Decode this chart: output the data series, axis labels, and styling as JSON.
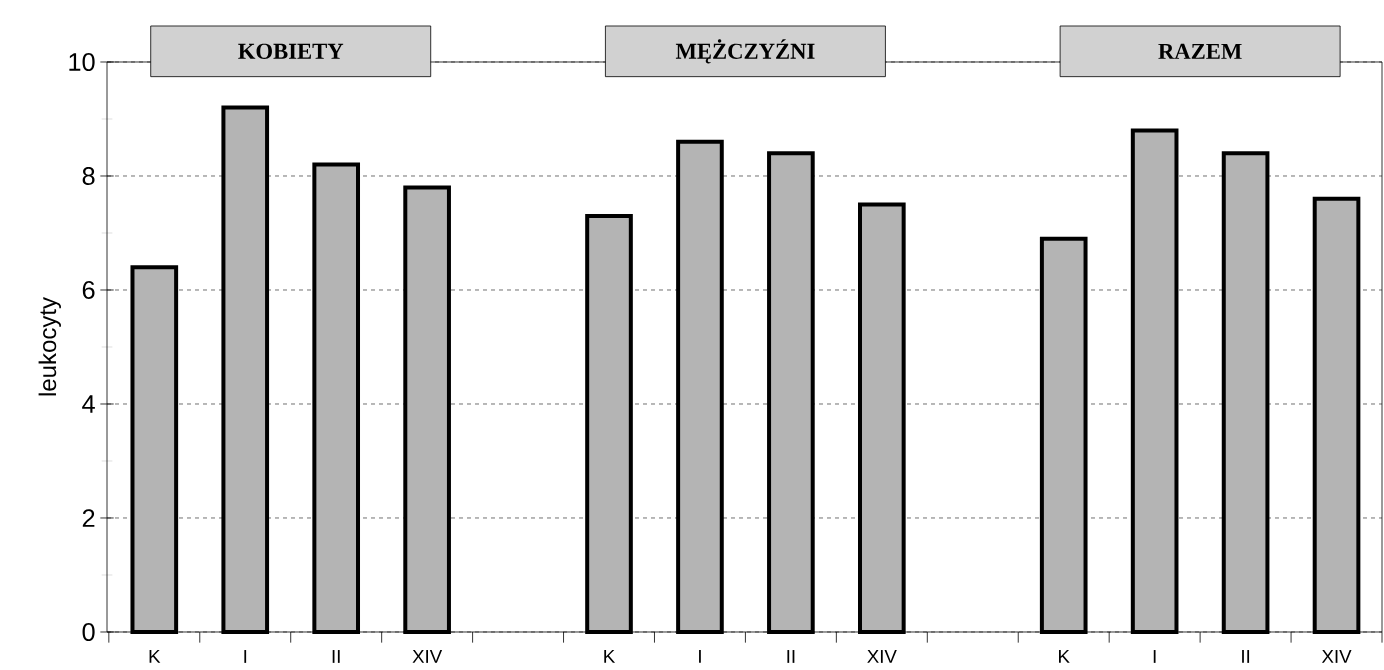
{
  "chart_data": {
    "type": "bar",
    "categories": [
      "K",
      "I",
      "II",
      "XIV",
      null,
      "K",
      "I",
      "II",
      "XIV",
      null,
      "K",
      "I",
      "II",
      "XIV"
    ],
    "values": [
      6.4,
      9.2,
      8.2,
      7.8,
      null,
      7.3,
      8.6,
      8.4,
      7.5,
      null,
      6.9,
      8.8,
      8.4,
      7.6
    ],
    "color": "#b4b4b4",
    "ylabel": "leukocyty",
    "ylim": [
      0,
      10
    ],
    "yticks": [
      0,
      {
        "value": 1,
        "label": null
      },
      2,
      {
        "value": 3,
        "label": null
      },
      4,
      {
        "value": 5,
        "label": null
      },
      6,
      {
        "value": 7,
        "label": null
      },
      8,
      {
        "value": 9,
        "label": null
      },
      10
    ],
    "grid": "y",
    "annotations": [
      "KOBIETY",
      "MĘŻCZYŹNI",
      "RAZEM"
    ]
  }
}
